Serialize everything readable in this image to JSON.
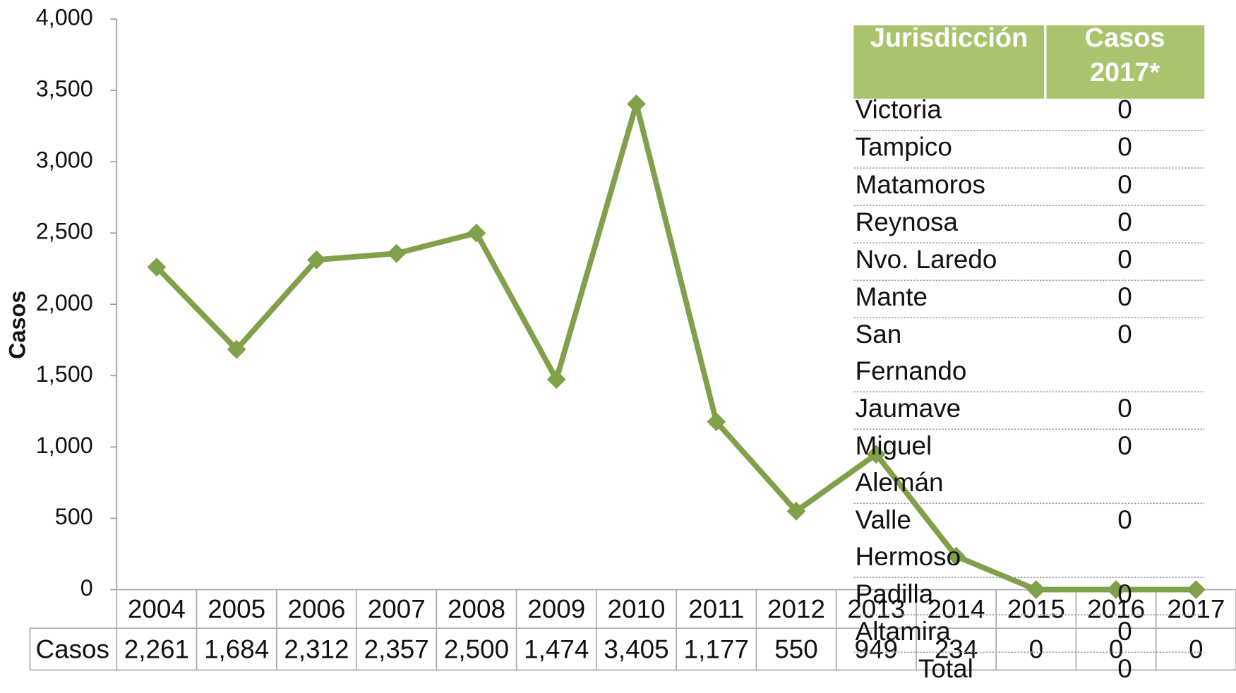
{
  "chart_data": {
    "type": "line",
    "y_label": "Casos",
    "categories": [
      "2004",
      "2005",
      "2006",
      "2007",
      "2008",
      "2009",
      "2010",
      "2011",
      "2012",
      "2013",
      "2014",
      "2015",
      "2016",
      "2017"
    ],
    "series": [
      {
        "name": "Casos",
        "color": "#80a04a",
        "values": [
          2261,
          1684,
          2312,
          2357,
          2500,
          1474,
          3405,
          1177,
          550,
          949,
          234,
          0,
          0,
          0
        ],
        "value_labels": [
          "2,261",
          "1,684",
          "2,312",
          "2,357",
          "2,500",
          "1,474",
          "3,405",
          "1,177",
          "550",
          "949",
          "234",
          "0",
          "0",
          "0"
        ]
      }
    ],
    "ylim": [
      0,
      4000
    ],
    "yticks": [
      0,
      500,
      {
        "value": 1000,
        "label": "1,000"
      },
      {
        "value": 1500,
        "label": "1,500"
      },
      {
        "value": 2000,
        "label": "2,000"
      },
      {
        "value": 2500,
        "label": "2,500"
      },
      {
        "value": 3000,
        "label": "3,000"
      },
      {
        "value": 3500,
        "label": "3,500"
      },
      {
        "value": 4000,
        "label": "4,000"
      }
    ],
    "grid": false
  },
  "table": {
    "header": [
      "Jurisdicción",
      "Casos 2017*"
    ],
    "rows": [
      [
        "Victoria",
        "0"
      ],
      [
        "Tampico",
        "0"
      ],
      [
        "Matamoros",
        "0"
      ],
      [
        "Reynosa",
        "0"
      ],
      [
        "Nvo. Laredo",
        "0"
      ],
      [
        "Mante",
        "0"
      ],
      [
        "San Fernando",
        "0"
      ],
      [
        "Jaumave",
        "0"
      ],
      [
        "Miguel Alemán",
        "0"
      ],
      [
        "Valle Hermoso",
        "0"
      ],
      [
        "Padilla",
        "0"
      ],
      [
        "Altamira",
        "0"
      ],
      [
        "Total",
        "0"
      ]
    ]
  }
}
